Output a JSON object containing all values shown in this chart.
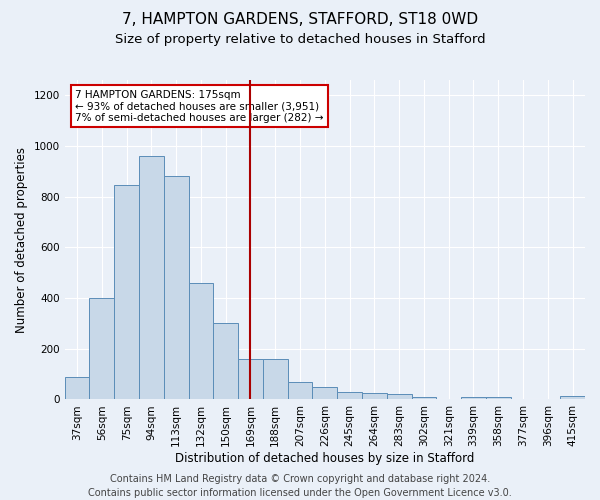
{
  "title": "7, HAMPTON GARDENS, STAFFORD, ST18 0WD",
  "subtitle": "Size of property relative to detached houses in Stafford",
  "xlabel": "Distribution of detached houses by size in Stafford",
  "ylabel": "Number of detached properties",
  "categories": [
    "37sqm",
    "56sqm",
    "75sqm",
    "94sqm",
    "113sqm",
    "132sqm",
    "150sqm",
    "169sqm",
    "188sqm",
    "207sqm",
    "226sqm",
    "245sqm",
    "264sqm",
    "283sqm",
    "302sqm",
    "321sqm",
    "339sqm",
    "358sqm",
    "377sqm",
    "396sqm",
    "415sqm"
  ],
  "values": [
    90,
    400,
    845,
    960,
    880,
    460,
    300,
    160,
    160,
    70,
    50,
    30,
    25,
    20,
    10,
    0,
    10,
    10,
    0,
    0,
    15
  ],
  "bar_color": "#c8d8e8",
  "bar_edge_color": "#5b8db8",
  "vline_x_index": 7,
  "vline_color": "#aa0000",
  "annotation_text": "7 HAMPTON GARDENS: 175sqm\n← 93% of detached houses are smaller (3,951)\n7% of semi-detached houses are larger (282) →",
  "annotation_box_color": "#ffffff",
  "annotation_box_edge": "#cc0000",
  "footer": "Contains HM Land Registry data © Crown copyright and database right 2024.\nContains public sector information licensed under the Open Government Licence v3.0.",
  "ylim": [
    0,
    1260
  ],
  "yticks": [
    0,
    200,
    400,
    600,
    800,
    1000,
    1200
  ],
  "bg_color": "#eaf0f8",
  "grid_color": "#ffffff",
  "title_fontsize": 11,
  "subtitle_fontsize": 9.5,
  "axis_label_fontsize": 8.5,
  "tick_fontsize": 7.5,
  "footer_fontsize": 7
}
